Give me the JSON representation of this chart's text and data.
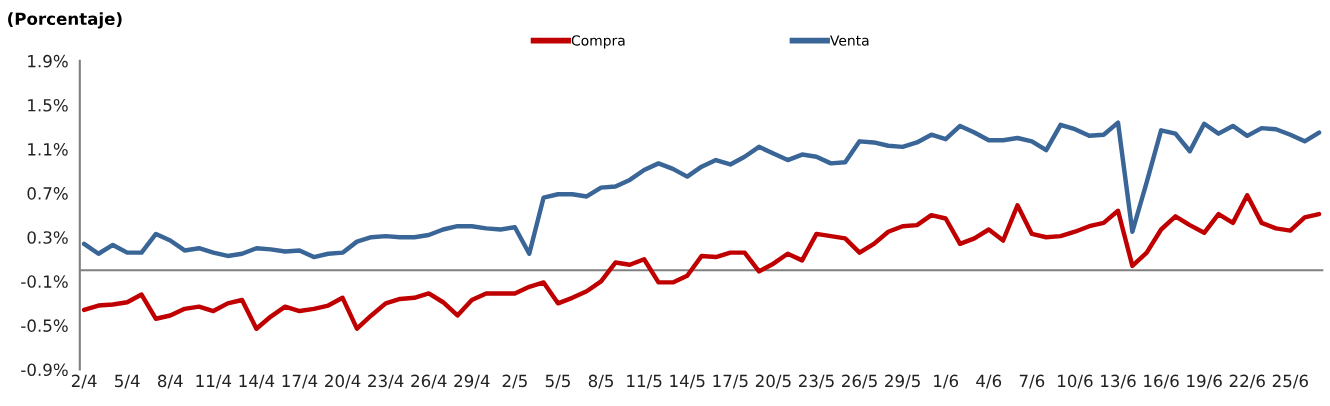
{
  "chart_data": {
    "type": "line",
    "title": "(Porcentaje)",
    "categories": [
      "2/4",
      null,
      null,
      "5/4",
      null,
      null,
      "8/4",
      null,
      null,
      "11/4",
      null,
      null,
      "14/4",
      null,
      null,
      "17/4",
      null,
      null,
      "20/4",
      null,
      null,
      "23/4",
      null,
      null,
      "26/4",
      null,
      null,
      "29/4",
      null,
      null,
      "2/5",
      null,
      null,
      "5/5",
      null,
      null,
      "8/5",
      null,
      null,
      "11/5",
      null,
      null,
      "14/5",
      null,
      null,
      "17/5",
      null,
      null,
      "20/5",
      null,
      null,
      "23/5",
      null,
      null,
      "26/5",
      null,
      null,
      "29/5",
      null,
      null,
      "1/6",
      null,
      null,
      "4/6",
      null,
      null,
      "7/6",
      null,
      null,
      "10/6",
      null,
      null,
      "13/6",
      null,
      null,
      "16/6",
      null,
      null,
      "19/6",
      null,
      null,
      "22/6",
      null,
      null,
      "25/6",
      null,
      null
    ],
    "series": [
      {
        "name": "Compra",
        "color": "#c00000",
        "values": [
          -0.36,
          -0.32,
          -0.31,
          -0.29,
          -0.22,
          -0.44,
          -0.41,
          -0.35,
          -0.33,
          -0.37,
          -0.3,
          -0.27,
          -0.53,
          -0.42,
          -0.33,
          -0.37,
          -0.35,
          -0.32,
          -0.25,
          -0.53,
          -0.41,
          -0.3,
          -0.26,
          -0.25,
          -0.21,
          -0.29,
          -0.41,
          -0.27,
          -0.21,
          -0.21,
          -0.21,
          -0.15,
          -0.11,
          -0.3,
          -0.25,
          -0.19,
          -0.1,
          0.07,
          0.05,
          0.1,
          -0.11,
          -0.11,
          -0.05,
          0.13,
          0.12,
          0.16,
          0.16,
          -0.01,
          0.06,
          0.15,
          0.09,
          0.33,
          0.31,
          0.29,
          0.16,
          0.24,
          0.35,
          0.4,
          0.41,
          0.5,
          0.47,
          0.24,
          0.29,
          0.37,
          0.27,
          0.59,
          0.33,
          0.3,
          0.31,
          0.35,
          0.4,
          0.43,
          0.54,
          0.04,
          0.16,
          0.37,
          0.49,
          0.41,
          0.34,
          0.51,
          0.43,
          0.68,
          0.43,
          0.38,
          0.36,
          0.48,
          0.51
        ]
      },
      {
        "name": "Venta",
        "color": "#3a6597",
        "values": [
          0.24,
          0.15,
          0.23,
          0.16,
          0.16,
          0.33,
          0.27,
          0.18,
          0.2,
          0.16,
          0.13,
          0.15,
          0.2,
          0.19,
          0.17,
          0.18,
          0.12,
          0.15,
          0.16,
          0.26,
          0.3,
          0.31,
          0.3,
          0.3,
          0.32,
          0.37,
          0.4,
          0.4,
          0.38,
          0.37,
          0.39,
          0.15,
          0.66,
          0.69,
          0.69,
          0.67,
          0.75,
          0.76,
          0.82,
          0.91,
          0.97,
          0.92,
          0.85,
          0.94,
          1.0,
          0.96,
          1.03,
          1.12,
          1.06,
          1.0,
          1.05,
          1.03,
          0.97,
          0.98,
          1.17,
          1.16,
          1.13,
          1.12,
          1.16,
          1.23,
          1.19,
          1.31,
          1.25,
          1.18,
          1.18,
          1.2,
          1.17,
          1.09,
          1.32,
          1.28,
          1.22,
          1.23,
          1.34,
          0.35,
          0.8,
          1.27,
          1.24,
          1.08,
          1.33,
          1.24,
          1.31,
          1.22,
          1.29,
          1.28,
          1.23,
          1.17,
          1.25
        ]
      }
    ],
    "ylim": [
      -0.9,
      1.9
    ],
    "yticks": [
      {
        "value": -0.9,
        "label": "-0.9%"
      },
      {
        "value": -0.5,
        "label": "-0.5%"
      },
      {
        "value": -0.1,
        "label": "-0.1%"
      },
      {
        "value": 0.3,
        "label": "0.3%"
      },
      {
        "value": 0.7,
        "label": "0.7%"
      },
      {
        "value": 1.1,
        "label": "1.1%"
      },
      {
        "value": 1.5,
        "label": "1.5%"
      },
      {
        "value": 1.9,
        "label": "1.9%"
      }
    ],
    "ref_lines": [
      {
        "axis": "y",
        "value": 0,
        "label": null,
        "color": "#808080"
      }
    ],
    "legend": "top",
    "grid": false,
    "marker": "none",
    "line_style": "solid"
  }
}
